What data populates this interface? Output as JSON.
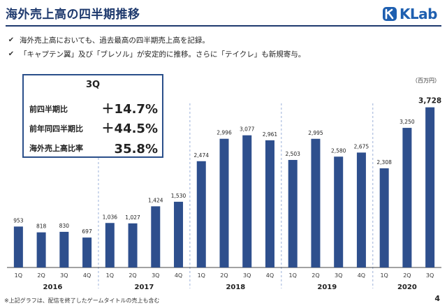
{
  "header": {
    "title": "海外売上高の四半期推移",
    "logo_text": "KLab"
  },
  "bullets": [
    {
      "icon": "check-icon",
      "text": "海外売上高においても、過去最高の四半期売上高を記録。"
    },
    {
      "icon": "check-icon",
      "text": "「キャプテン翼」及び「ブレソル」が安定的に推移。さらに「テイクレ」も新規寄与。"
    }
  ],
  "kpi": {
    "heading": "3Q",
    "rows": [
      {
        "label": "前四半期比",
        "value": "＋14.7%"
      },
      {
        "label": "前年同四半期比",
        "value": "＋44.5%"
      },
      {
        "label": "海外売上高比率",
        "value": "35.8%"
      }
    ]
  },
  "unit_label": "（百万円）",
  "footnote": "※上記グラフは、配信を終了したゲームタイトルの売上も含む",
  "page_number": "4",
  "colors": {
    "bar": "#2e4f8d",
    "title": "#1f3a6e",
    "logo": "#1e5fb0",
    "divider": "#9bb0d8"
  },
  "chart_data": {
    "type": "bar",
    "categories": [
      "1Q",
      "2Q",
      "3Q",
      "4Q",
      "1Q",
      "2Q",
      "3Q",
      "4Q",
      "1Q",
      "2Q",
      "3Q",
      "4Q",
      "1Q",
      "2Q",
      "3Q",
      "4Q",
      "1Q",
      "2Q",
      "3Q"
    ],
    "values": [
      953,
      818,
      830,
      697,
      1036,
      1027,
      1424,
      1530,
      2474,
      2996,
      3077,
      2961,
      2503,
      2995,
      2580,
      2675,
      2308,
      3250,
      3728
    ],
    "value_labels": [
      "953",
      "818",
      "830",
      "697",
      "1,036",
      "1,027",
      "1,424",
      "1,530",
      "2,474",
      "2,996",
      "3,077",
      "2,961",
      "2,503",
      "2,995",
      "2,580",
      "2,675",
      "2,308",
      "3,250",
      "3,728"
    ],
    "highlight_index": 18,
    "groups": [
      {
        "label": "2016",
        "count": 4
      },
      {
        "label": "2017",
        "count": 4
      },
      {
        "label": "2018",
        "count": 4
      },
      {
        "label": "2019",
        "count": 4
      },
      {
        "label": "2020",
        "count": 3
      }
    ],
    "ylim": [
      0,
      3950
    ],
    "grid": false
  }
}
